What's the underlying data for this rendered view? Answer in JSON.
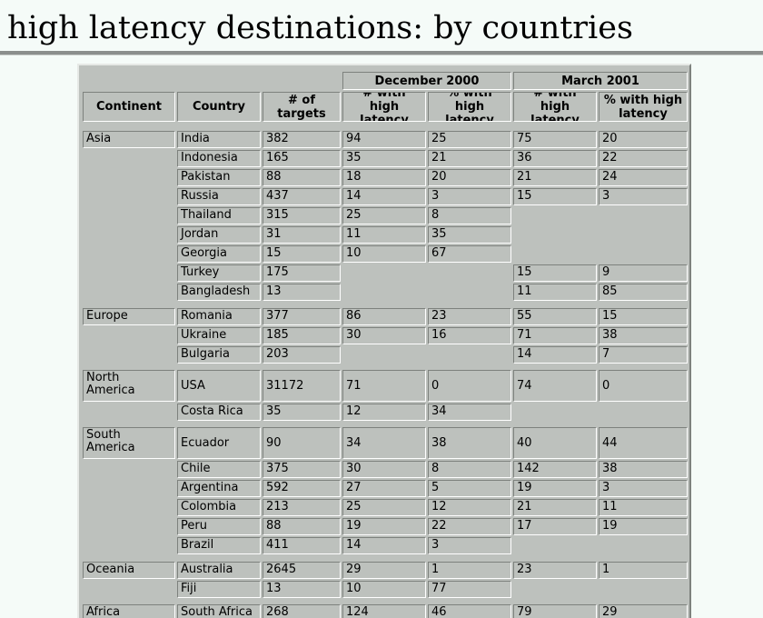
{
  "title": "high latency destinations: by countries",
  "headers": {
    "continent": "Continent",
    "country": "Country",
    "targets_1": "# of",
    "targets_2": "targets",
    "period_1": "December 2000",
    "period_2": "March 2001",
    "num_1": "# with high",
    "num_2": "latency",
    "pct_1": "% with high",
    "pct_2": "latency"
  },
  "rows": [
    {
      "continent": "Asia",
      "country": "India",
      "targets": "382",
      "d_n": "94",
      "d_p": "25",
      "m_n": "75",
      "m_p": "20"
    },
    {
      "continent": "",
      "country": "Indonesia",
      "targets": "165",
      "d_n": "35",
      "d_p": "21",
      "m_n": "36",
      "m_p": "22"
    },
    {
      "continent": "",
      "country": "Pakistan",
      "targets": "88",
      "d_n": "18",
      "d_p": "20",
      "m_n": "21",
      "m_p": "24"
    },
    {
      "continent": "",
      "country": "Russia",
      "targets": "437",
      "d_n": "14",
      "d_p": "3",
      "m_n": "15",
      "m_p": "3"
    },
    {
      "continent": "",
      "country": "Thailand",
      "targets": "315",
      "d_n": "25",
      "d_p": "8",
      "m_n": "",
      "m_p": ""
    },
    {
      "continent": "",
      "country": "Jordan",
      "targets": "31",
      "d_n": "11",
      "d_p": "35",
      "m_n": "",
      "m_p": ""
    },
    {
      "continent": "",
      "country": "Georgia",
      "targets": "15",
      "d_n": "10",
      "d_p": "67",
      "m_n": "",
      "m_p": ""
    },
    {
      "continent": "",
      "country": "Turkey",
      "targets": "175",
      "d_n": "",
      "d_p": "",
      "m_n": "15",
      "m_p": "9"
    },
    {
      "continent": "",
      "country": "Bangladesh",
      "targets": "13",
      "d_n": "",
      "d_p": "",
      "m_n": "11",
      "m_p": "85"
    },
    {
      "continent": "Europe",
      "country": "Romania",
      "targets": "377",
      "d_n": "86",
      "d_p": "23",
      "m_n": "55",
      "m_p": "15"
    },
    {
      "continent": "",
      "country": "Ukraine",
      "targets": "185",
      "d_n": "30",
      "d_p": "16",
      "m_n": "71",
      "m_p": "38"
    },
    {
      "continent": "",
      "country": "Bulgaria",
      "targets": "203",
      "d_n": "",
      "d_p": "",
      "m_n": "14",
      "m_p": "7"
    },
    {
      "continent": "North America",
      "country": "USA",
      "targets": "31172",
      "d_n": "71",
      "d_p": "0",
      "m_n": "74",
      "m_p": "0"
    },
    {
      "continent": "",
      "country": "Costa Rica",
      "targets": "35",
      "d_n": "12",
      "d_p": "34",
      "m_n": "",
      "m_p": ""
    },
    {
      "continent": "South America",
      "country": "Ecuador",
      "targets": "90",
      "d_n": "34",
      "d_p": "38",
      "m_n": "40",
      "m_p": "44"
    },
    {
      "continent": "",
      "country": "Chile",
      "targets": "375",
      "d_n": "30",
      "d_p": "8",
      "m_n": "142",
      "m_p": "38"
    },
    {
      "continent": "",
      "country": "Argentina",
      "targets": "592",
      "d_n": "27",
      "d_p": "5",
      "m_n": "19",
      "m_p": "3"
    },
    {
      "continent": "",
      "country": "Colombia",
      "targets": "213",
      "d_n": "25",
      "d_p": "12",
      "m_n": "21",
      "m_p": "11"
    },
    {
      "continent": "",
      "country": "Peru",
      "targets": "88",
      "d_n": "19",
      "d_p": "22",
      "m_n": "17",
      "m_p": "19"
    },
    {
      "continent": "",
      "country": "Brazil",
      "targets": "411",
      "d_n": "14",
      "d_p": "3",
      "m_n": "",
      "m_p": ""
    },
    {
      "continent": "Oceania",
      "country": "Australia",
      "targets": "2645",
      "d_n": "29",
      "d_p": "1",
      "m_n": "23",
      "m_p": "1"
    },
    {
      "continent": "",
      "country": "Fiji",
      "targets": "13",
      "d_n": "10",
      "d_p": "77",
      "m_n": "",
      "m_p": ""
    },
    {
      "continent": "Africa",
      "country": "South Africa",
      "targets": "268",
      "d_n": "124",
      "d_p": "46",
      "m_n": "79",
      "m_p": "29"
    }
  ]
}
